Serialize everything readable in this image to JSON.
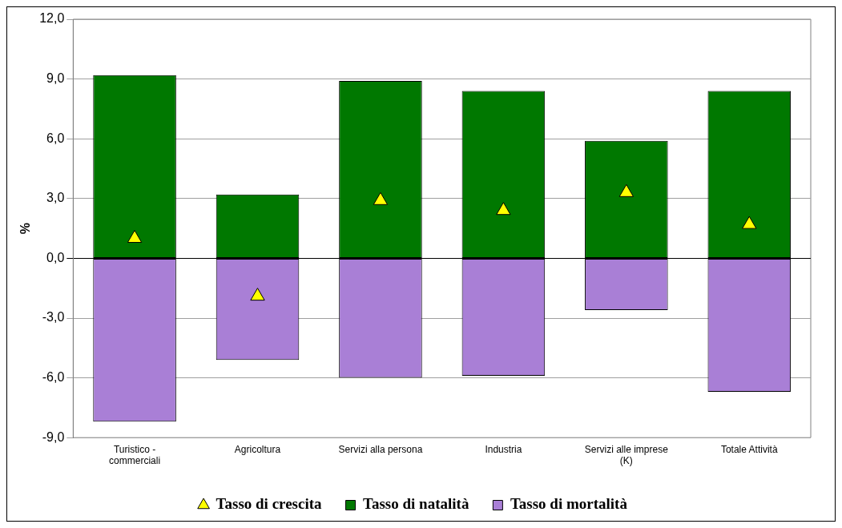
{
  "chart_data": {
    "type": "bar",
    "stacked": true,
    "ylabel": "%",
    "categories": [
      "Turistico -\ncommerciali",
      "Agricoltura",
      "Servizi alla persona",
      "Industria",
      "Servizi alle imprese\n(K)",
      "Totale Attività"
    ],
    "series": [
      {
        "name": "Tasso di natalità",
        "color": "#007800",
        "values": [
          9.2,
          3.2,
          8.9,
          8.4,
          5.9,
          8.4
        ]
      },
      {
        "name": "Tasso di mortalità",
        "color": "#a97fd6",
        "values": [
          -8.2,
          -5.1,
          -6.0,
          -5.9,
          -2.6,
          -6.7
        ]
      },
      {
        "name": "Tasso di crescita",
        "type": "scatter",
        "color": "#ffff00",
        "marker": "triangle",
        "values": [
          1.0,
          -1.9,
          2.9,
          2.4,
          3.3,
          1.7
        ]
      }
    ],
    "ylim": [
      -9,
      12
    ],
    "yticks": [
      {
        "value": -9,
        "label": "-9,0"
      },
      {
        "value": -6,
        "label": "-6,0"
      },
      {
        "value": -3,
        "label": "-3,0"
      },
      {
        "value": 0,
        "label": "0,0"
      },
      {
        "value": 3,
        "label": "3,0"
      },
      {
        "value": 6,
        "label": "6,0"
      },
      {
        "value": 9,
        "label": "9,0"
      },
      {
        "value": 12,
        "label": "12,0"
      }
    ],
    "grid": "y",
    "legend": "bottom"
  }
}
